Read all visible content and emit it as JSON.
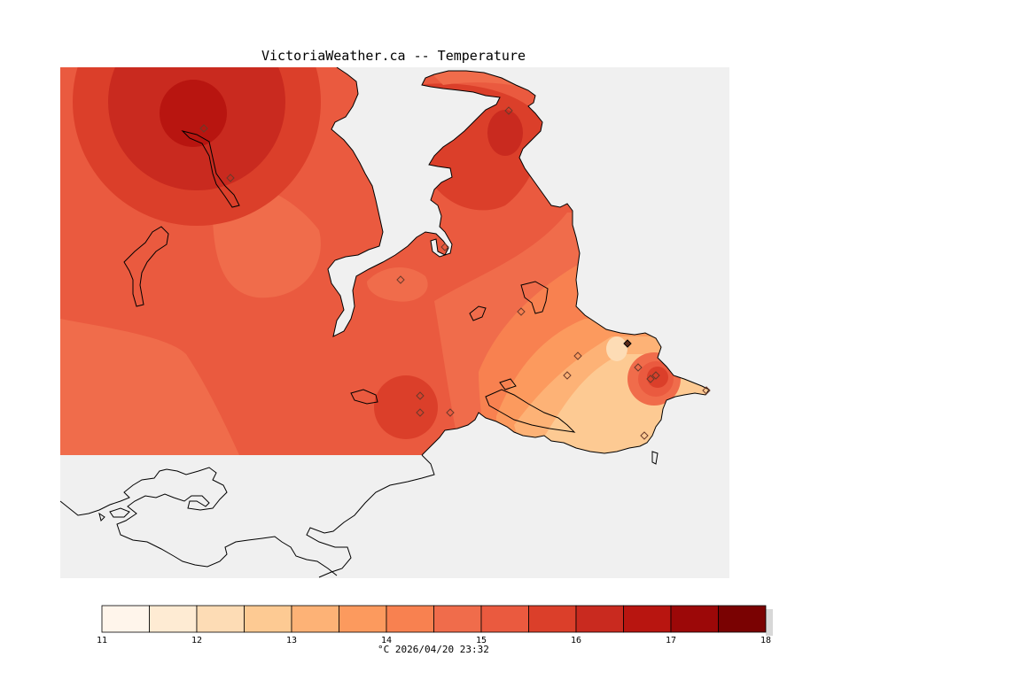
{
  "title": "VictoriaWeather.ca -- Temperature",
  "legend": {
    "ticks": [
      "11",
      "12",
      "13",
      "14",
      "15",
      "16",
      "17",
      "18"
    ],
    "units_timestamp": "°C  2026/04/20 23:32",
    "colors": [
      "#fff5eb",
      "#feebd3",
      "#fddcb5",
      "#fdca93",
      "#fdb276",
      "#fc9a5e",
      "#f88150",
      "#f06c4b",
      "#ea5a3f",
      "#db3f2a",
      "#c92a1f",
      "#b81510",
      "#9c0808",
      "#7a0202"
    ]
  },
  "colors": {
    "background_sea": "#f0f0f0",
    "land_outline": "#000000",
    "station_marker": "#7a4a3a"
  }
}
